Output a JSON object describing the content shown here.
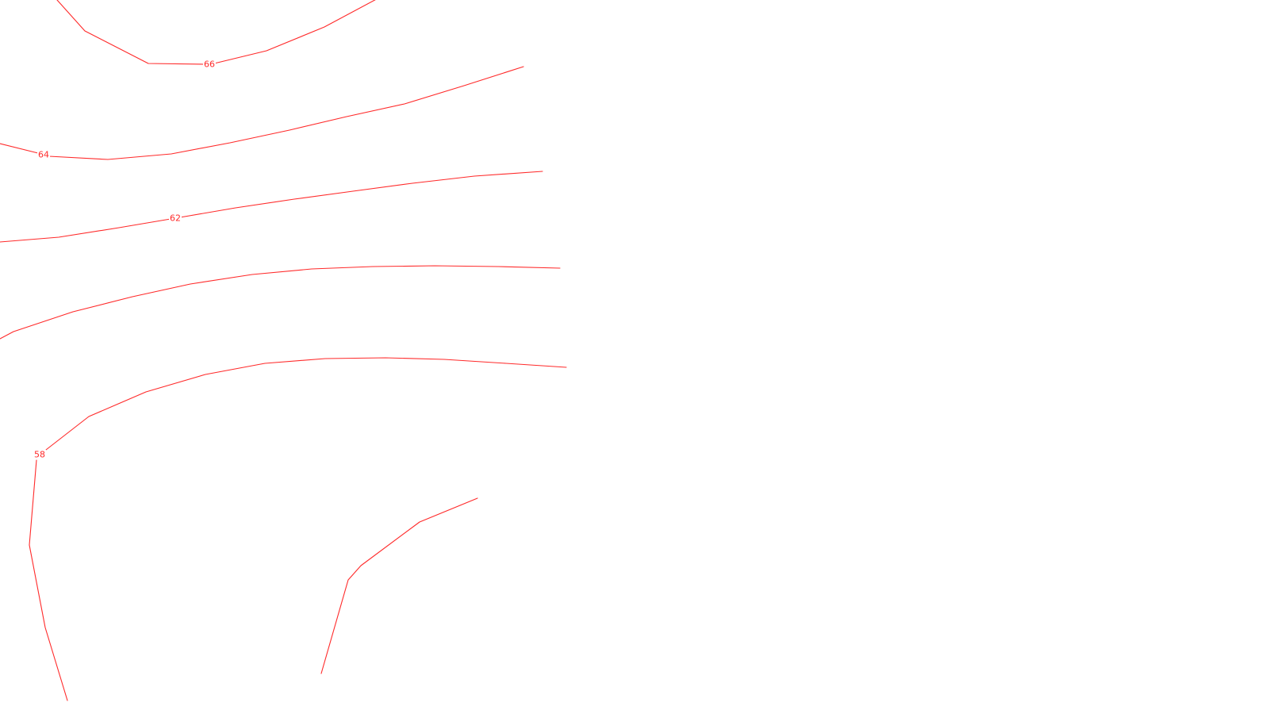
{
  "map": {
    "line_color": "#ff2a2a",
    "background_color": "#ffffff",
    "contours": [
      {
        "id": "contour-66",
        "label": "66"
      },
      {
        "id": "contour-64",
        "label": "64"
      },
      {
        "id": "contour-62",
        "label": "62"
      },
      {
        "id": "contour-60",
        "label": ""
      },
      {
        "id": "contour-58-upper",
        "label": ""
      },
      {
        "id": "contour-58",
        "label": "58"
      },
      {
        "id": "contour-56",
        "label": ""
      }
    ]
  }
}
